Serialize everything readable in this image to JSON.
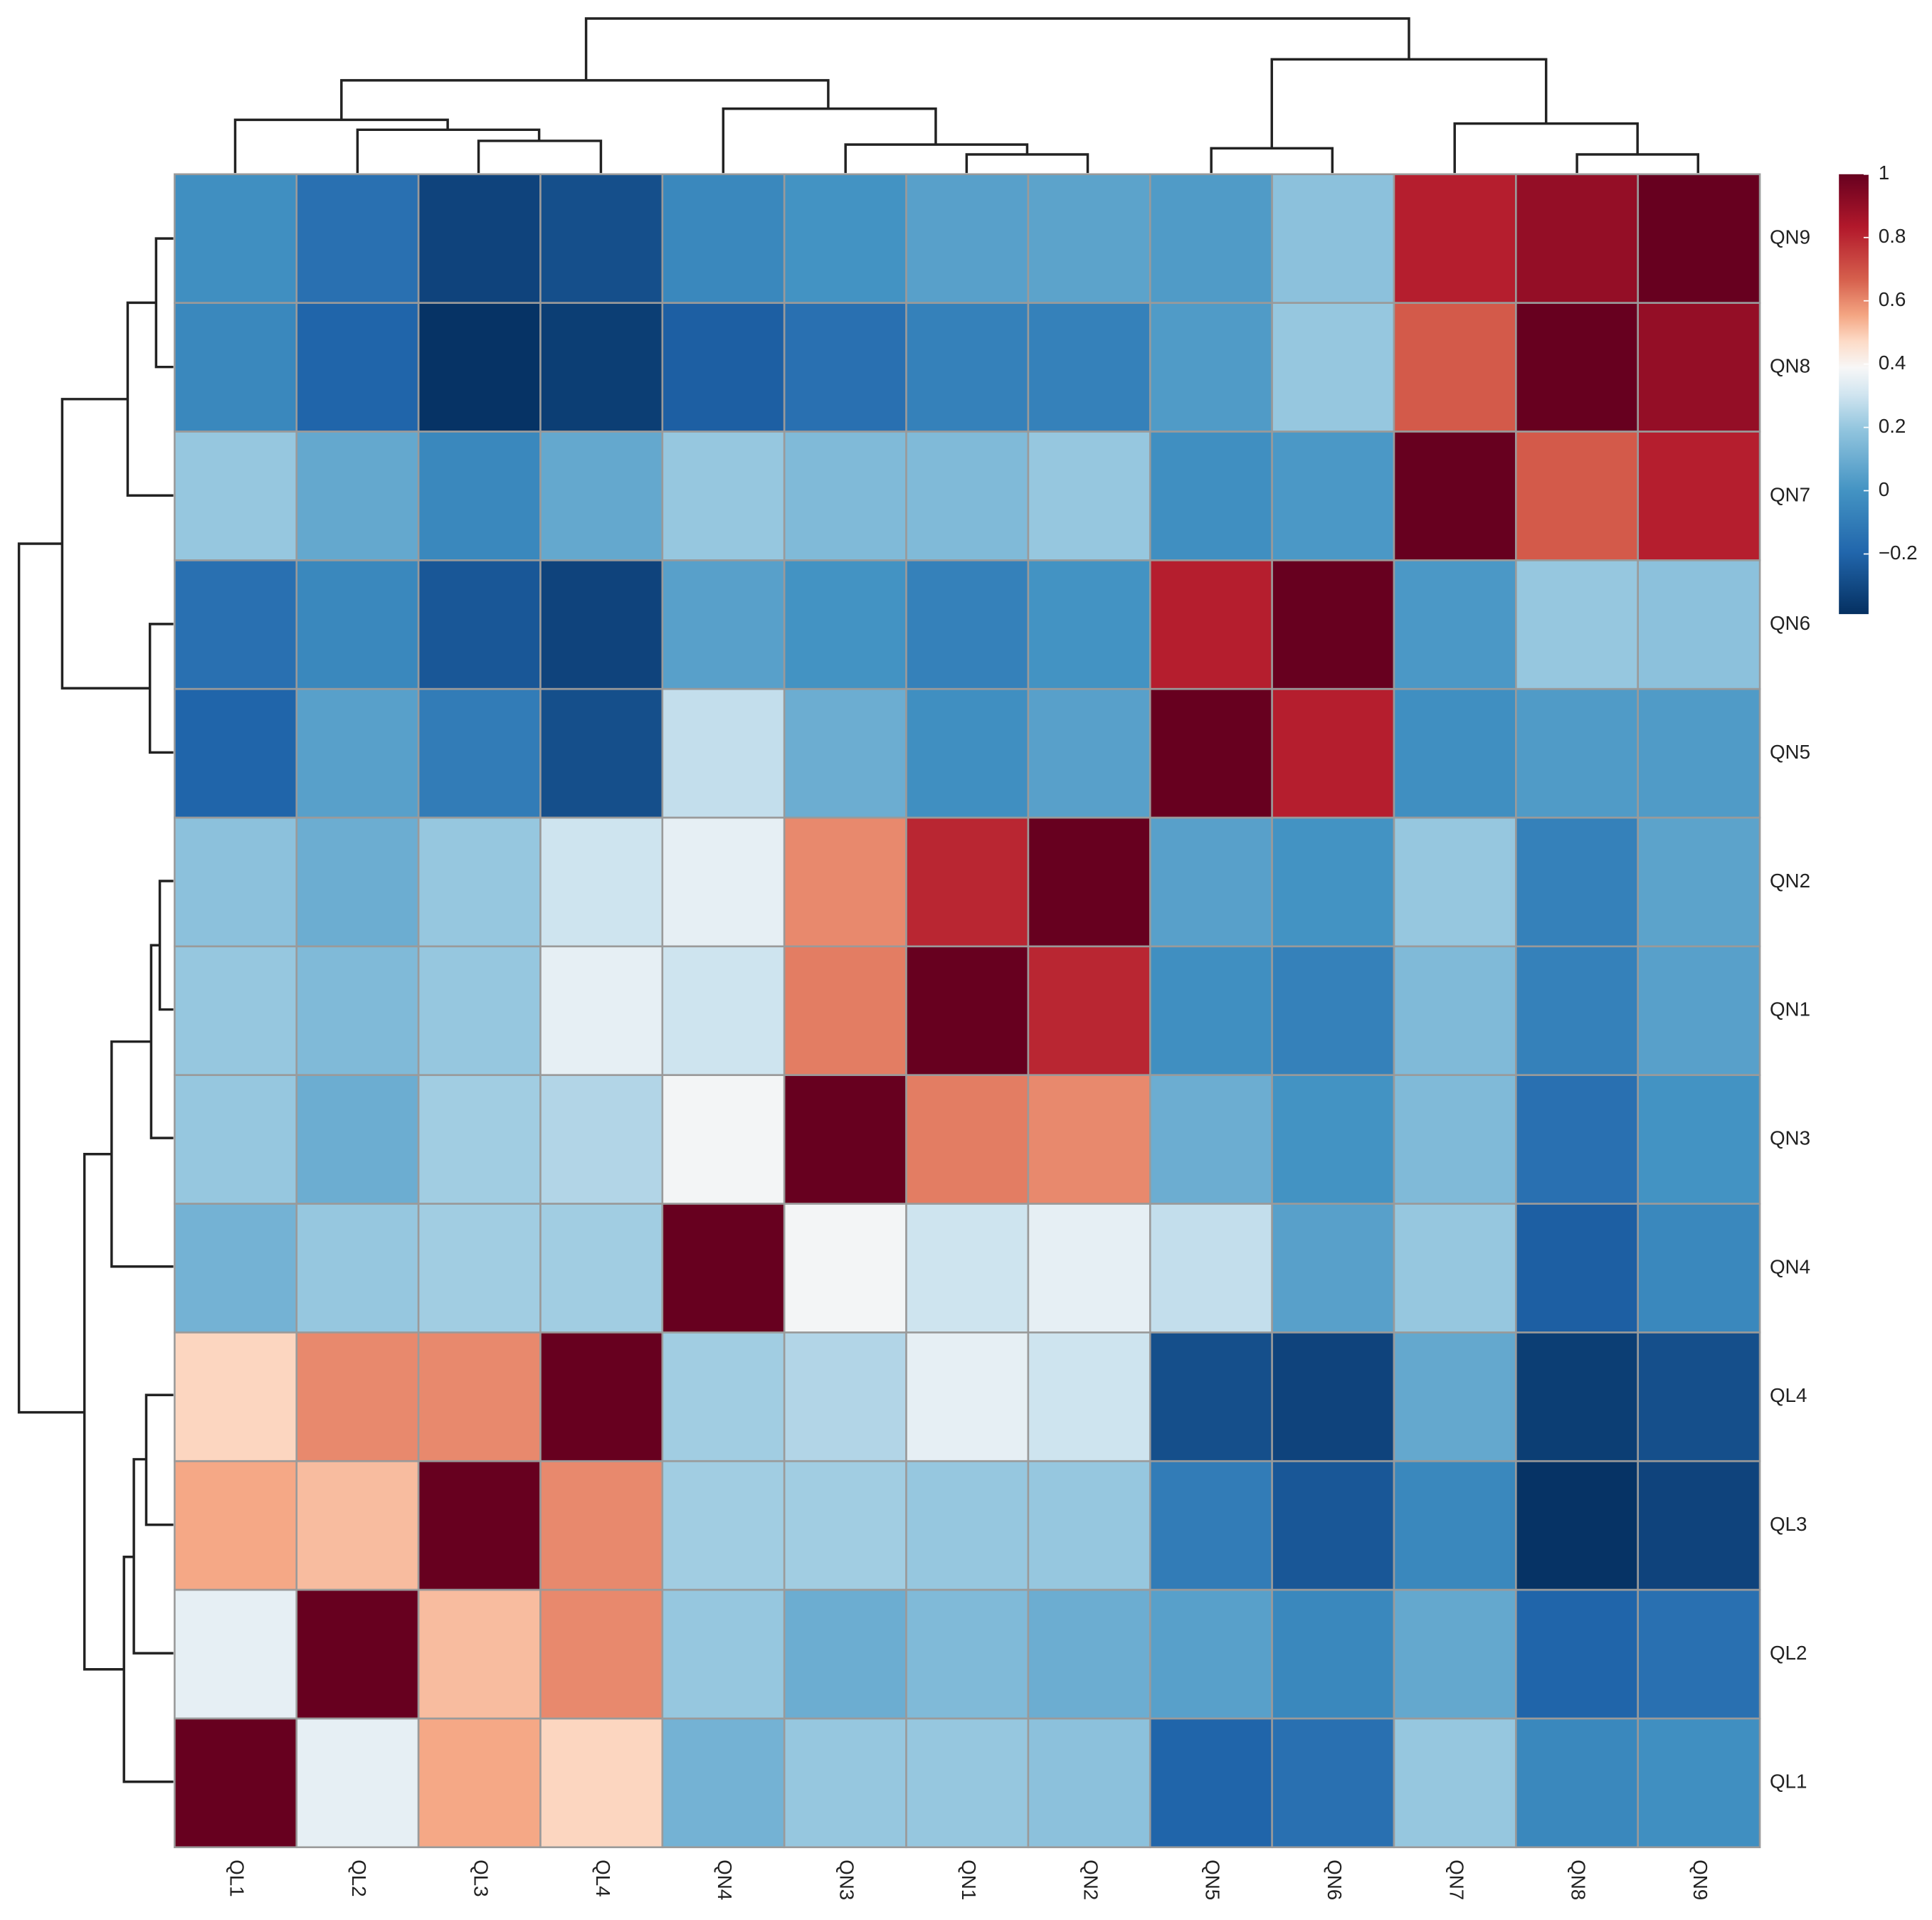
{
  "chart_data": {
    "type": "heatmap",
    "columns": [
      "QL1",
      "QL2",
      "QL3",
      "QL4",
      "QN4",
      "QN3",
      "QN1",
      "QN2",
      "QN5",
      "QN6",
      "QN7",
      "QN8",
      "QN9"
    ],
    "rows": [
      "QN9",
      "QN8",
      "QN7",
      "QN6",
      "QN5",
      "QN2",
      "QN1",
      "QN3",
      "QN4",
      "QL4",
      "QL3",
      "QL2",
      "QL1"
    ],
    "values": [
      [
        -0.02,
        -0.15,
        -0.32,
        -0.28,
        -0.05,
        0,
        0.05,
        0.06,
        0.03,
        0.18,
        0.82,
        0.9,
        1
      ],
      [
        -0.05,
        -0.2,
        -0.38,
        -0.34,
        -0.22,
        -0.15,
        -0.08,
        -0.08,
        0.03,
        0.2,
        0.68,
        1,
        0.9
      ],
      [
        0.2,
        0.08,
        -0.05,
        0.08,
        0.2,
        0.15,
        0.15,
        0.2,
        -0.02,
        0.02,
        1,
        0.68,
        0.82
      ],
      [
        -0.15,
        -0.05,
        -0.25,
        -0.32,
        0.05,
        0,
        -0.08,
        0,
        0.82,
        1,
        0.02,
        0.2,
        0.18
      ],
      [
        -0.2,
        0.05,
        -0.1,
        -0.28,
        0.28,
        0.1,
        -0.02,
        0.05,
        1,
        0.82,
        -0.02,
        0.03,
        0.03
      ],
      [
        0.18,
        0.1,
        0.2,
        0.3,
        0.35,
        0.6,
        0.8,
        1,
        0.05,
        0,
        0.2,
        -0.08,
        0.06
      ],
      [
        0.2,
        0.15,
        0.2,
        0.35,
        0.3,
        0.62,
        1,
        0.8,
        -0.02,
        -0.08,
        0.15,
        -0.08,
        0.05
      ],
      [
        0.2,
        0.1,
        0.22,
        0.25,
        0.38,
        1,
        0.62,
        0.6,
        0.1,
        0,
        0.15,
        -0.15,
        0
      ],
      [
        0.12,
        0.2,
        0.22,
        0.22,
        1,
        0.38,
        0.3,
        0.35,
        0.28,
        0.05,
        0.2,
        -0.22,
        -0.05
      ],
      [
        0.48,
        0.6,
        0.6,
        1,
        0.22,
        0.25,
        0.35,
        0.3,
        -0.28,
        -0.32,
        0.08,
        -0.34,
        -0.28
      ],
      [
        0.55,
        0.52,
        1,
        0.6,
        0.22,
        0.22,
        0.2,
        0.2,
        -0.1,
        -0.25,
        -0.05,
        -0.38,
        -0.32
      ],
      [
        0.35,
        1,
        0.52,
        0.6,
        0.2,
        0.1,
        0.15,
        0.1,
        0.05,
        -0.05,
        0.08,
        -0.2,
        -0.15
      ],
      [
        1,
        0.35,
        0.55,
        0.48,
        0.12,
        0.2,
        0.2,
        0.18,
        -0.2,
        -0.15,
        0.2,
        -0.05,
        -0.02
      ]
    ],
    "zlim": [
      -0.39,
      1
    ],
    "zticks": [
      1,
      0.8,
      0.6,
      0.4,
      0.2,
      0,
      {
        "value": -0.2,
        "label": "−0.2"
      }
    ]
  }
}
